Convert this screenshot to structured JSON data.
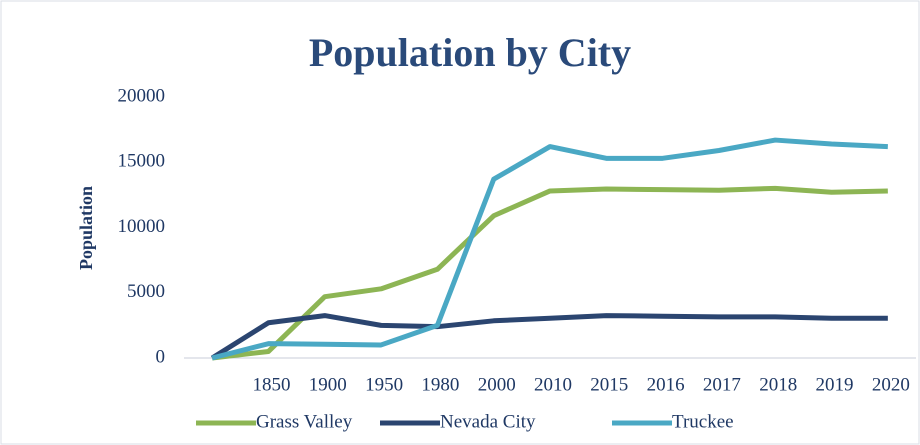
{
  "chart_data": {
    "type": "line",
    "title": "Population by City",
    "y_label": "Population",
    "categories": [
      null,
      "1850",
      "1900",
      "1950",
      "1980",
      "2000",
      "2010",
      "2015",
      "2016",
      "2017",
      "2018",
      "2019",
      "2020"
    ],
    "series": [
      {
        "name": "Grass Valley",
        "color": "#8db554",
        "values": [
          0,
          500,
          4700,
          5300,
          6800,
          10900,
          12800,
          12950,
          12900,
          12850,
          13000,
          12700,
          12800
        ]
      },
      {
        "name": "Nevada City",
        "color": "#2b4570",
        "values": [
          0,
          2700,
          3250,
          2500,
          2400,
          2850,
          3050,
          3250,
          3200,
          3150,
          3150,
          3050,
          3050
        ]
      },
      {
        "name": "Truckee",
        "color": "#4aa8c4",
        "values": [
          0,
          1100,
          1050,
          1000,
          2500,
          13700,
          16200,
          15300,
          15300,
          15900,
          16700,
          16400,
          16200
        ]
      }
    ],
    "ylim": [
      0,
      20000
    ],
    "yticks": [
      0,
      5000,
      10000,
      15000,
      20000
    ],
    "legend": "bottom"
  }
}
